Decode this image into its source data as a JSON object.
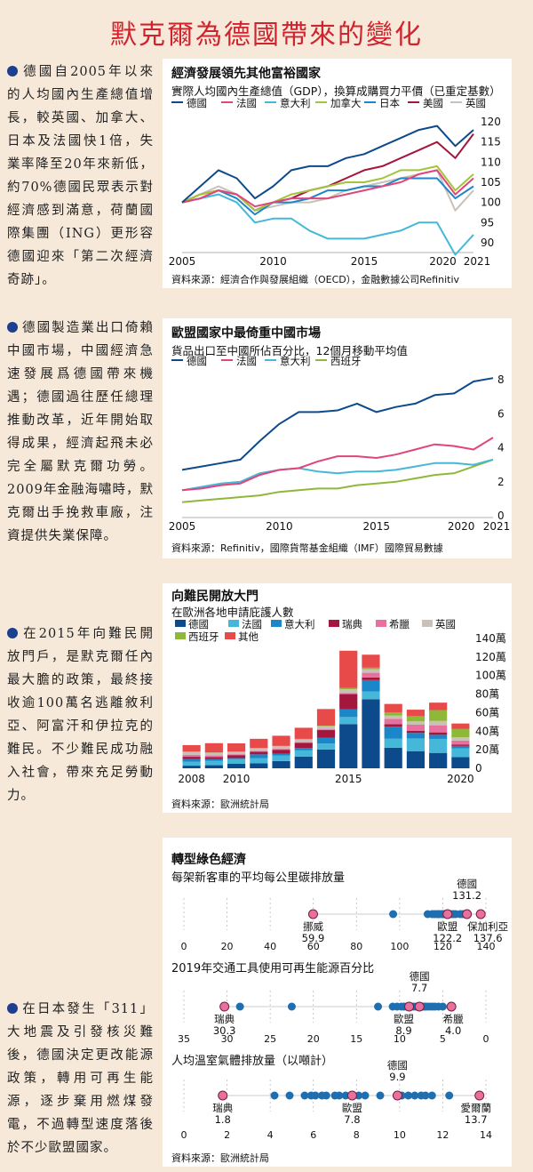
{
  "page": {
    "title": "默克爾為德國帶來的變化",
    "bullets": [
      "德國自2005年以來的人均國內生產總值增長，較英國、加拿大、日本及法國快1倍，失業率降至20年來新低，約70%德國民眾表示對經濟感到滿意，荷蘭國際集團（ING）更形容德國迎來「第二次經濟奇跡」。",
      "德國製造業出口倚賴中國市場，中國經濟急速發展爲德國帶來機遇；德國過往歷任總理推動改革，近年開始取得成果，經濟起飛未必完全屬默克爾功勞。2009年金融海嘯時，默克爾出手挽救車廠，注資提供失業保障。",
      "在2015年向難民開放門戶，是默克爾任內最大膽的政策，最終接收逾100萬名逃離敘利亞、阿富汗和伊拉克的難民。不少難民成功融入社會，帶來充足勞動力。",
      "在日本發生「311」大地震及引發核災難後，德國決定更改能源政策，轉用可再生能源，逐步棄用燃煤發電，不過轉型速度落後於不少歐盟國家。"
    ]
  },
  "colors": {
    "germany": "#0d4a8c",
    "france": "#e0457b",
    "italy": "#45b7d9",
    "canada": "#a4c43b",
    "japan": "#1b86c8",
    "usa": "#a3163d",
    "uk": "#c9c0b8",
    "sweden": "#e23b3b",
    "greece": "#e8709e",
    "spain": "#8fb83a",
    "other": "#e84a4a",
    "highlight": "#e8709e",
    "dot": "#1f6fb0"
  },
  "chart_data": [
    {
      "type": "line",
      "title": "經濟發展領先其他富裕國家",
      "subtitle": "實際人均國內生產總值（GDP），換算成購買力平價（已重定基數）",
      "source": "資料來源：經濟合作與發展組織（OECD），金融數據公司Refinitiv",
      "x": [
        2005,
        2006,
        2007,
        2008,
        2009,
        2010,
        2011,
        2012,
        2013,
        2014,
        2015,
        2016,
        2017,
        2018,
        2019,
        2020,
        2021
      ],
      "x_ticks": [
        "2005",
        "2010",
        "2015",
        "2020",
        "2021"
      ],
      "y_ticks": [
        "90",
        "95",
        "100",
        "105",
        "110",
        "115",
        "120"
      ],
      "ylim": [
        88,
        122
      ],
      "series": [
        {
          "name": "德國",
          "color_key": "germany",
          "values": [
            100,
            104,
            108,
            106,
            101,
            104,
            108,
            109,
            109,
            111,
            112,
            114,
            116,
            118,
            119,
            114,
            118
          ]
        },
        {
          "name": "法國",
          "color_key": "france",
          "values": [
            100,
            101,
            103,
            102,
            99,
            100,
            101,
            101,
            101,
            102,
            103,
            104,
            105,
            107,
            108,
            102,
            106
          ]
        },
        {
          "name": "意大利",
          "color_key": "italy",
          "values": [
            100,
            101,
            102,
            100,
            95,
            96,
            96,
            93,
            91,
            91,
            91,
            92,
            93,
            95,
            95,
            87,
            92
          ]
        },
        {
          "name": "加拿大",
          "color_key": "canada",
          "values": [
            100,
            102,
            103,
            102,
            98,
            100,
            102,
            103,
            104,
            105,
            105,
            106,
            108,
            108,
            109,
            103,
            107
          ]
        },
        {
          "name": "日本",
          "color_key": "japan",
          "values": [
            100,
            101,
            103,
            101,
            97,
            100,
            100,
            101,
            103,
            103,
            104,
            104,
            106,
            106,
            106,
            101,
            104
          ]
        },
        {
          "name": "美國",
          "color_key": "usa",
          "values": [
            100,
            102,
            103,
            102,
            98,
            100,
            101,
            103,
            104,
            106,
            108,
            109,
            111,
            113,
            115,
            111,
            117
          ]
        },
        {
          "name": "英國",
          "color_key": "uk",
          "values": [
            100,
            102,
            104,
            102,
            98,
            99,
            100,
            100,
            101,
            103,
            104,
            105,
            106,
            107,
            108,
            98,
            103
          ]
        }
      ]
    },
    {
      "type": "line",
      "title": "歐盟國家中最倚重中國市場",
      "subtitle": "貨品出口至中國所佔百分比，12個月移動平均值",
      "source": "資料來源：Refinitiv，國際貨幣基金組織（IMF）國際貿易數據",
      "x": [
        2005,
        2006,
        2007,
        2008,
        2009,
        2010,
        2011,
        2012,
        2013,
        2014,
        2015,
        2016,
        2017,
        2018,
        2019,
        2020,
        2021
      ],
      "x_ticks": [
        "2005",
        "2010",
        "2015",
        "2020",
        "2021"
      ],
      "y_ticks": [
        "0",
        "2",
        "4",
        "6",
        "8"
      ],
      "ylim": [
        0,
        9
      ],
      "series": [
        {
          "name": "德國",
          "color_key": "germany",
          "values": [
            2.7,
            2.9,
            3.1,
            3.3,
            4.4,
            5.4,
            6.1,
            6.1,
            6.2,
            6.6,
            6.1,
            6.4,
            6.6,
            7.1,
            7.2,
            7.9,
            8.1
          ]
        },
        {
          "name": "法國",
          "color_key": "france",
          "values": [
            1.5,
            1.6,
            1.8,
            1.9,
            2.4,
            2.7,
            2.8,
            3.2,
            3.5,
            3.5,
            3.4,
            3.6,
            3.9,
            4.2,
            4.1,
            3.9,
            4.6
          ]
        },
        {
          "name": "意大利",
          "color_key": "italy",
          "values": [
            1.5,
            1.7,
            1.9,
            2.0,
            2.5,
            2.7,
            2.8,
            2.6,
            2.5,
            2.6,
            2.6,
            2.7,
            2.9,
            3.1,
            3.1,
            3.0,
            3.3
          ]
        },
        {
          "name": "西班牙",
          "color_key": "spain",
          "values": [
            0.8,
            0.9,
            1.0,
            1.1,
            1.2,
            1.4,
            1.5,
            1.6,
            1.6,
            1.8,
            1.9,
            2.0,
            2.2,
            2.4,
            2.5,
            2.9,
            3.3
          ]
        }
      ]
    },
    {
      "type": "bar",
      "title": "向難民開放大門",
      "subtitle": "在歐洲各地申請庇護人數",
      "source": "資料來源：歐洲統計局",
      "categories": [
        "2008",
        "2009",
        "2010",
        "2011",
        "2012",
        "2013",
        "2014",
        "2015",
        "2016",
        "2017",
        "2018",
        "2019",
        "2020"
      ],
      "x_ticks": [
        "2008",
        "2010",
        "2015",
        "2020"
      ],
      "y_ticks": [
        "0",
        "20萬",
        "40萬",
        "60萬",
        "80萬",
        "100萬",
        "120萬",
        "140萬"
      ],
      "ylim": [
        0,
        140
      ],
      "series": [
        {
          "name": "德國",
          "color_key": "germany",
          "values": [
            2.8,
            3.3,
            4.8,
            5.3,
            7.8,
            12.7,
            20.3,
            47.7,
            74.5,
            22.2,
            18.5,
            16.6,
            12.2
          ]
        },
        {
          "name": "法國",
          "color_key": "italy",
          "values": [
            4.2,
            4.8,
            5.2,
            5.7,
            6.1,
            6.6,
            6.4,
            7.6,
            8.4,
            9.9,
            13.7,
            15.1,
            9.3
          ]
        },
        {
          "name": "意大利",
          "color_key": "japan",
          "values": [
            3.0,
            1.7,
            1.0,
            4.0,
            1.7,
            2.7,
            6.4,
            8.4,
            12.2,
            12.9,
            5.9,
            4.4,
            2.6
          ]
        },
        {
          "name": "瑞典",
          "color_key": "usa",
          "values": [
            2.4,
            2.4,
            3.2,
            3.0,
            4.4,
            5.4,
            8.1,
            16.3,
            2.8,
            2.6,
            2.2,
            2.6,
            1.6
          ]
        },
        {
          "name": "希臘",
          "color_key": "greece",
          "values": [
            2.0,
            1.6,
            1.0,
            0.9,
            1.0,
            0.8,
            0.9,
            1.3,
            5.1,
            5.8,
            6.7,
            7.7,
            4.1
          ]
        },
        {
          "name": "英國",
          "color_key": "uk",
          "values": [
            3.1,
            3.0,
            2.4,
            2.6,
            2.8,
            3.0,
            3.2,
            4.0,
            3.9,
            3.4,
            3.8,
            4.6,
            3.6
          ]
        },
        {
          "name": "西班牙",
          "color_key": "spain",
          "values": [
            0.5,
            0.3,
            0.3,
            0.3,
            0.3,
            0.5,
            0.6,
            1.5,
            1.6,
            3.6,
            5.4,
            11.8,
            8.9
          ]
        },
        {
          "name": "其他",
          "color_key": "other",
          "values": [
            7.0,
            10.0,
            9.0,
            10.0,
            11.0,
            12.0,
            18.0,
            40.0,
            14.0,
            9.0,
            7.0,
            8.0,
            6.0
          ]
        }
      ]
    },
    {
      "type": "scatter",
      "title": "轉型綠色經濟",
      "subtitle": "每架新客車的平均每公里碳排放量",
      "source": "資料來源：歐洲統計局",
      "x_ticks": [
        "0",
        "20",
        "40",
        "60",
        "80",
        "100",
        "120",
        "140"
      ],
      "xlim": [
        0,
        140
      ],
      "points": [
        97,
        113,
        115,
        116,
        117,
        118,
        118,
        119,
        120,
        120,
        121,
        121,
        122,
        123,
        124,
        125,
        126,
        128,
        129,
        130
      ],
      "highlights": [
        {
          "label": "挪威",
          "value": "59.9",
          "x": 59.9
        },
        {
          "label": "歐盟",
          "value": "122.2",
          "x": 122.2
        },
        {
          "label": "德國",
          "value": "131.2",
          "x": 131.2
        },
        {
          "label": "保加利亞",
          "value": "137.6",
          "x": 137.6
        }
      ]
    },
    {
      "type": "scatter",
      "title": "2019年交通工具使用可再生能源百分比",
      "x_ticks": [
        "35",
        "30",
        "25",
        "20",
        "15",
        "10",
        "5",
        "0"
      ],
      "xlim": [
        35,
        0
      ],
      "points": [
        28.5,
        22.5,
        12.5,
        10.8,
        10.3,
        9.8,
        9.5,
        9.2,
        8.7,
        8.4,
        8.1,
        7.9,
        7.4,
        7.2,
        7.0,
        6.8,
        6.5,
        6.2,
        5.9,
        5.5,
        5.0
      ],
      "highlights": [
        {
          "label": "瑞典",
          "value": "30.3",
          "x": 30.3
        },
        {
          "label": "德國",
          "value": "7.7",
          "x": 7.7
        },
        {
          "label": "歐盟",
          "value": "8.9",
          "x": 8.9
        },
        {
          "label": "希臘",
          "value": "4.0",
          "x": 4.0
        }
      ]
    },
    {
      "type": "scatter",
      "title": "人均溫室氣體排放量（以噸計）",
      "x_ticks": [
        "0",
        "2",
        "4",
        "6",
        "8",
        "10",
        "12",
        "14"
      ],
      "xlim": [
        0,
        14
      ],
      "points": [
        4.2,
        4.9,
        5.6,
        5.9,
        6.1,
        6.4,
        6.6,
        7.0,
        7.2,
        7.5,
        8.1,
        8.4,
        9.1,
        10.1,
        10.4,
        10.7,
        11.0,
        11.2,
        11.5,
        12.3
      ],
      "highlights": [
        {
          "label": "瑞典",
          "value": "1.8",
          "x": 1.8
        },
        {
          "label": "歐盟",
          "value": "7.8",
          "x": 7.8
        },
        {
          "label": "德國",
          "value": "9.9",
          "x": 9.9
        },
        {
          "label": "愛爾蘭",
          "value": "13.7",
          "x": 13.7
        }
      ]
    }
  ]
}
